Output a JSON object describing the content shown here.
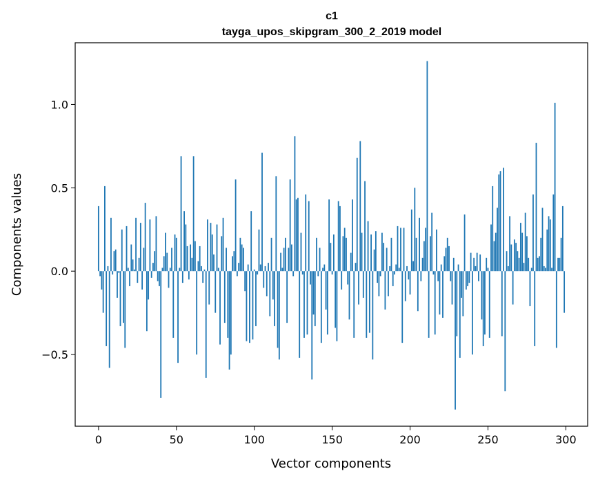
{
  "chart_data": {
    "type": "bar",
    "title": "c1",
    "subtitle": "tayga_upos_skipgram_300_2_2019 model",
    "xlabel": "Vector components",
    "ylabel": "Components values",
    "xlim": [
      -15,
      314
    ],
    "ylim": [
      -0.93,
      1.37
    ],
    "xticks": [
      0,
      50,
      100,
      150,
      200,
      250,
      300
    ],
    "xtick_labels": [
      "0",
      "50",
      "100",
      "150",
      "200",
      "250",
      "300"
    ],
    "yticks": [
      -0.5,
      0.0,
      0.5,
      1.0
    ],
    "ytick_labels": [
      "−0.5",
      "0.0",
      "0.5",
      "1.0"
    ],
    "grid": false,
    "bar_color": "#1f77b4",
    "values": [
      0.39,
      -0.03,
      -0.11,
      -0.25,
      0.51,
      -0.45,
      0.03,
      -0.58,
      0.32,
      -0.02,
      0.12,
      0.13,
      -0.16,
      -0.01,
      -0.33,
      0.25,
      -0.31,
      -0.46,
      0.27,
      0.02,
      -0.09,
      0.16,
      0.07,
      0.01,
      0.32,
      -0.07,
      0.08,
      0.29,
      -0.11,
      0.14,
      0.41,
      -0.36,
      -0.17,
      0.31,
      -0.04,
      0.05,
      0.12,
      0.33,
      -0.06,
      -0.09,
      -0.76,
      0.02,
      0.09,
      0.23,
      0.11,
      -0.1,
      0.02,
      0.14,
      -0.4,
      0.22,
      0.2,
      -0.55,
      0.02,
      0.69,
      -0.07,
      0.36,
      0.28,
      0.15,
      -0.05,
      0.16,
      0.08,
      0.69,
      0.18,
      -0.5,
      0.06,
      0.15,
      0.03,
      -0.07,
      0.01,
      -0.64,
      0.31,
      -0.2,
      0.29,
      0.22,
      0.1,
      -0.25,
      0.28,
      0.02,
      -0.44,
      0.21,
      0.32,
      -0.31,
      0.14,
      -0.4,
      -0.59,
      -0.5,
      0.09,
      0.12,
      0.55,
      -0.03,
      0.05,
      0.2,
      0.16,
      0.14,
      -0.12,
      -0.42,
      0.04,
      -0.43,
      0.36,
      -0.41,
      0.01,
      -0.33,
      -0.02,
      0.25,
      0.04,
      0.71,
      -0.1,
      0.03,
      -0.15,
      0.05,
      -0.27,
      0.2,
      -0.17,
      -0.33,
      0.57,
      -0.46,
      -0.53,
      0.11,
      0.02,
      0.14,
      0.2,
      -0.31,
      0.14,
      0.55,
      0.16,
      -0.03,
      0.81,
      0.43,
      0.44,
      -0.52,
      0.23,
      -0.02,
      -0.4,
      0.46,
      -0.38,
      0.42,
      -0.08,
      -0.65,
      -0.26,
      -0.33,
      0.2,
      -0.03,
      0.14,
      -0.43,
      0.02,
      0.04,
      -0.23,
      -0.38,
      0.43,
      0.17,
      -0.02,
      0.22,
      -0.34,
      -0.42,
      0.42,
      0.39,
      -0.11,
      0.21,
      0.26,
      0.2,
      -0.08,
      -0.29,
      0.11,
      0.43,
      -0.4,
      0.05,
      0.68,
      -0.2,
      0.78,
      0.23,
      -0.16,
      0.54,
      -0.4,
      0.3,
      -0.37,
      0.22,
      -0.53,
      0.13,
      0.24,
      -0.07,
      -0.15,
      -0.03,
      0.23,
      0.17,
      -0.23,
      0.14,
      -0.15,
      0.03,
      0.2,
      -0.09,
      -0.02,
      0.04,
      0.27,
      0.02,
      0.26,
      -0.43,
      0.26,
      -0.18,
      0.03,
      -0.05,
      -0.14,
      0.37,
      0.06,
      0.5,
      0.2,
      -0.24,
      0.32,
      -0.06,
      0.08,
      0.18,
      0.26,
      1.26,
      -0.4,
      0.21,
      0.35,
      -0.02,
      -0.38,
      0.25,
      -0.06,
      -0.26,
      0.04,
      -0.28,
      0.09,
      0.14,
      0.2,
      0.15,
      -0.06,
      -0.2,
      0.08,
      -0.83,
      -0.39,
      0.04,
      -0.52,
      -0.16,
      -0.27,
      0.34,
      -0.11,
      -0.09,
      -0.07,
      0.11,
      -0.5,
      0.08,
      0.03,
      0.11,
      -0.06,
      0.1,
      -0.29,
      -0.45,
      -0.38,
      0.08,
      0.02,
      -0.4,
      0.28,
      0.51,
      0.18,
      0.23,
      0.38,
      0.58,
      0.6,
      -0.39,
      0.62,
      -0.72,
      0.12,
      0.03,
      0.33,
      0.16,
      -0.2,
      0.19,
      0.17,
      0.12,
      0.08,
      0.29,
      0.23,
      0.05,
      0.35,
      0.21,
      0.08,
      -0.21,
      0.02,
      0.46,
      -0.45,
      0.77,
      0.08,
      0.09,
      0.2,
      0.38,
      0.03,
      0.02,
      0.25,
      0.33,
      0.31,
      0.02,
      0.46,
      1.01,
      -0.46,
      0.08,
      0.08,
      0.2,
      0.39,
      -0.25
    ]
  }
}
